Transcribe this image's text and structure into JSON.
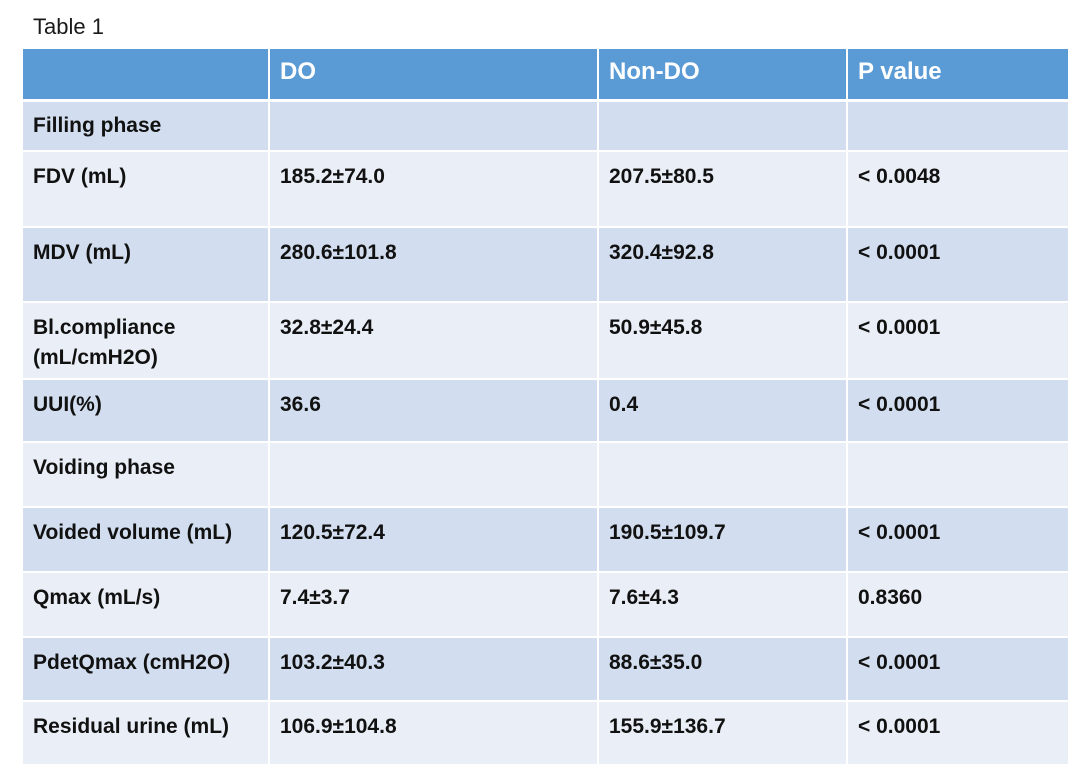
{
  "caption": "Table 1",
  "header": {
    "col1": "",
    "col2": "DO",
    "col3": "Non-DO",
    "col4": "P value"
  },
  "rows": [
    {
      "label": "Filling phase",
      "do": "",
      "nondo": "",
      "p": ""
    },
    {
      "label": "FDV (mL)",
      "do": "185.2±74.0",
      "nondo": "207.5±80.5",
      "p": "< 0.0048"
    },
    {
      "label": "MDV (mL)",
      "do": "280.6±101.8",
      "nondo": "320.4±92.8",
      "p": "< 0.0001"
    },
    {
      "label": "Bl.compliance (mL/cmH2O)",
      "do": "32.8±24.4",
      "nondo": "50.9±45.8",
      "p": "< 0.0001"
    },
    {
      "label": "UUI(%)",
      "do": "36.6",
      "nondo": "0.4",
      "p": "< 0.0001"
    },
    {
      "label": "Voiding phase",
      "do": "",
      "nondo": "",
      "p": ""
    },
    {
      "label": "Voided volume (mL)",
      "do": "120.5±72.4",
      "nondo": "190.5±109.7",
      "p": "< 0.0001"
    },
    {
      "label": "Qmax (mL/s)",
      "do": "7.4±3.7",
      "nondo": "7.6±4.3",
      "p": "0.8360"
    },
    {
      "label": "PdetQmax (cmH2O)",
      "do": "103.2±40.3",
      "nondo": "88.6±35.0",
      "p": "< 0.0001"
    },
    {
      "label": "Residual urine (mL)",
      "do": "106.9±104.8",
      "nondo": "155.9±136.7",
      "p": "< 0.0001"
    }
  ],
  "colors": {
    "header_bg": "#5b9bd5",
    "row_dark": "#d2deef",
    "row_light": "#eaeff7"
  }
}
